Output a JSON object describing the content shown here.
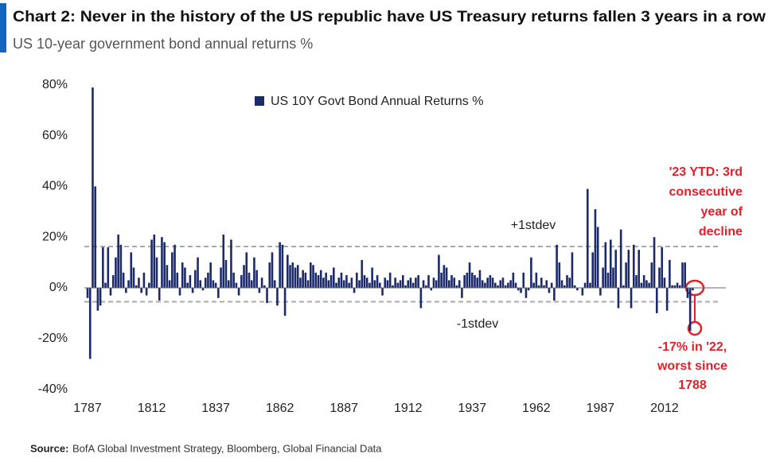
{
  "chart_data": {
    "type": "bar",
    "title": "Chart 2: Never in the history of the US republic have US Treasury returns fallen 3 years in a row",
    "subtitle": "US 10-year government bond annual returns %",
    "source_label": "Source:",
    "source": "BofA Global Investment Strategy, Bloomberg, Global Financial Data",
    "x_start": 1787,
    "xlim": [
      1787,
      2023
    ],
    "xticks": [
      1787,
      1812,
      1837,
      1862,
      1887,
      1912,
      1937,
      1962,
      1987,
      2012
    ],
    "ylim": [
      -40,
      80
    ],
    "yticks": [
      {
        "value": -40,
        "label": "-40%"
      },
      {
        "value": -20,
        "label": "-20%"
      },
      {
        "value": 0,
        "label": "0%"
      },
      {
        "value": 20,
        "label": "20%"
      },
      {
        "value": 40,
        "label": "40%"
      },
      {
        "value": 60,
        "label": "60%"
      },
      {
        "value": 80,
        "label": "80%"
      }
    ],
    "series": [
      {
        "name": "US 10Y Govt Bond Annual Returns %",
        "color": "#1b2a6b",
        "values": [
          -4,
          -28,
          79,
          40,
          -9,
          -7,
          16,
          2,
          16,
          -3,
          5,
          12,
          21,
          17,
          6,
          -2,
          3,
          14,
          8,
          1,
          4,
          -2,
          6,
          -3,
          2,
          19,
          21,
          12,
          -5,
          20,
          18,
          9,
          3,
          14,
          17,
          6,
          -3,
          10,
          8,
          2,
          5,
          -2,
          7,
          12,
          3,
          -1,
          4,
          6,
          10,
          3,
          2,
          -4,
          8,
          21,
          11,
          3,
          19,
          6,
          2,
          -3,
          5,
          9,
          14,
          6,
          3,
          12,
          7,
          -2,
          4,
          1,
          -6,
          10,
          14,
          3,
          -7,
          18,
          17,
          -11,
          13,
          9,
          10,
          8,
          9,
          4,
          7,
          6,
          3,
          10,
          9,
          6,
          5,
          7,
          4,
          6,
          3,
          5,
          8,
          2,
          4,
          6,
          3,
          5,
          2,
          4,
          -2,
          6,
          3,
          11,
          5,
          4,
          2,
          8,
          3,
          5,
          2,
          -3,
          4,
          3,
          6,
          1,
          4,
          2,
          3,
          5,
          1,
          3,
          4,
          2,
          4,
          5,
          -8,
          3,
          1,
          5,
          -1,
          4,
          3,
          13,
          6,
          9,
          8,
          3,
          5,
          4,
          1,
          3,
          -4,
          5,
          6,
          10,
          6,
          5,
          4,
          7,
          3,
          2,
          4,
          5,
          4,
          2,
          1,
          3,
          4,
          1,
          2,
          3,
          6,
          2,
          -1,
          -2,
          6,
          -4,
          -1,
          12,
          2,
          6,
          1,
          4,
          1,
          3,
          -2,
          2,
          -5,
          17,
          10,
          3,
          1,
          5,
          4,
          14,
          1,
          -1,
          0,
          -3,
          2,
          39,
          2,
          14,
          31,
          24,
          -3,
          8,
          18,
          6,
          19,
          8,
          15,
          -8,
          23,
          1,
          10,
          15,
          -8,
          17,
          5,
          15,
          2,
          5,
          3,
          2,
          10,
          20,
          -10,
          8,
          16,
          4,
          -9,
          11,
          1,
          1,
          2,
          1,
          10,
          10,
          -4,
          -17,
          -1
        ]
      }
    ],
    "stdev_lines": [
      {
        "label": "+1stdev",
        "value": 16.3
      },
      {
        "label": "-1stdev",
        "value": -5.5
      }
    ],
    "annotation_top": [
      "'23 YTD: 3rd",
      "consecutive",
      "year of",
      "decline"
    ],
    "annotation_bottom": [
      "-17% in '22,",
      "worst since",
      "1788"
    ]
  }
}
